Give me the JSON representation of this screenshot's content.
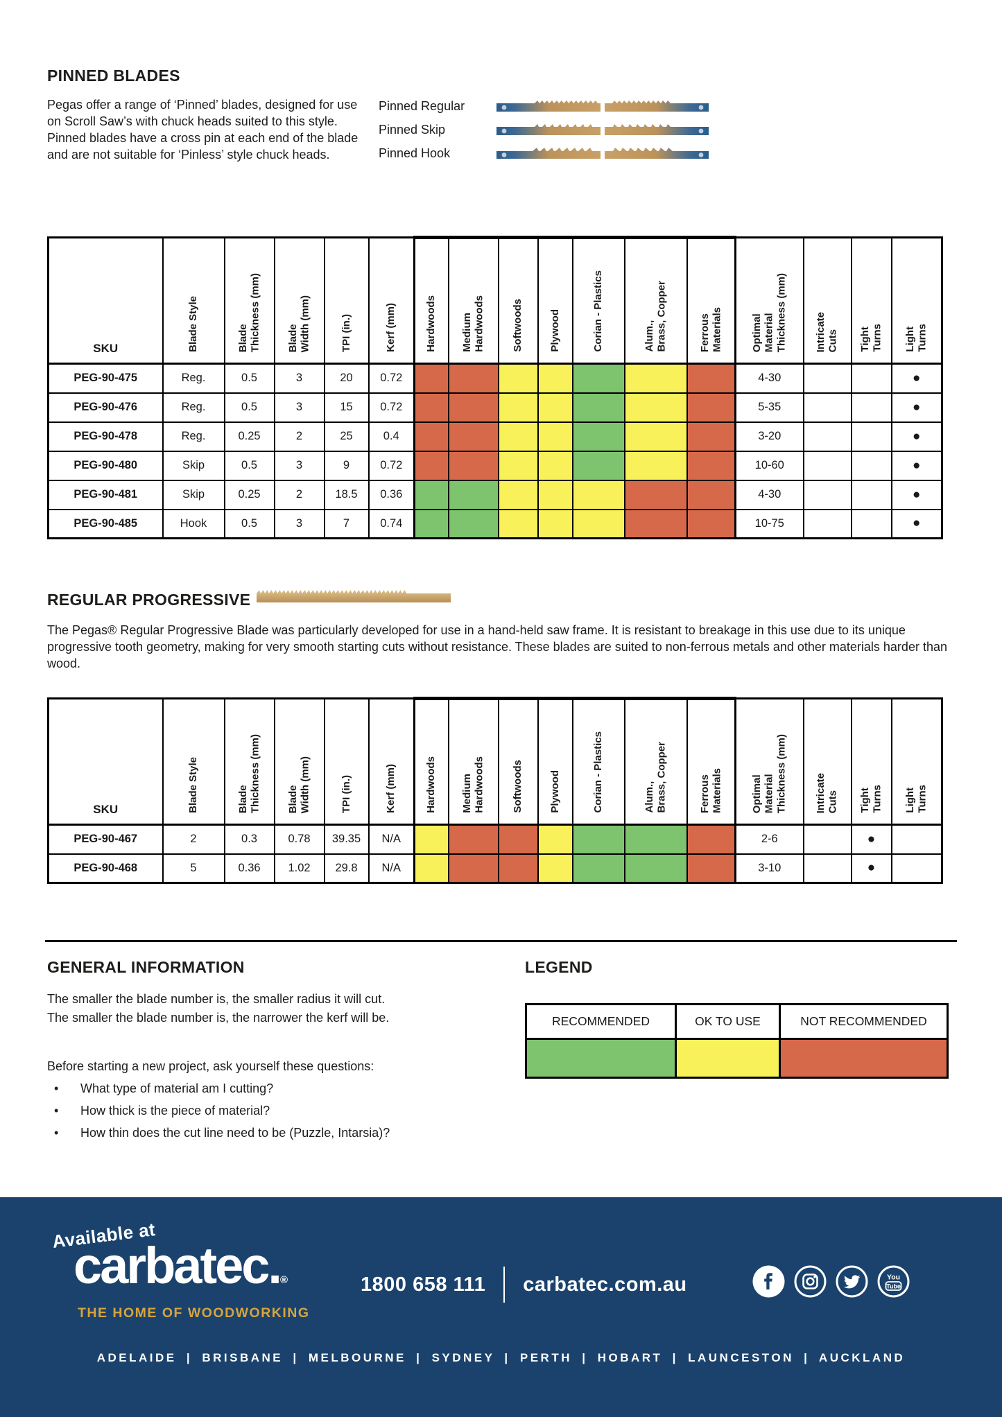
{
  "pinned_blades": {
    "heading": "PINNED BLADES",
    "description": "Pegas offer a range of ‘Pinned’ blades, designed for use on Scroll Saw’s with chuck heads suited to this style. Pinned blades have a cross pin at each end of the blade and are not suitable for ‘Pinless’ style chuck heads.",
    "blade_types": [
      {
        "label": "Pinned Regular"
      },
      {
        "label": "Pinned Skip"
      },
      {
        "label": "Pinned Hook"
      }
    ]
  },
  "table": {
    "columns": [
      {
        "key": "sku",
        "label": "SKU"
      },
      {
        "key": "style",
        "label": "Blade Style"
      },
      {
        "key": "thickness",
        "label": "Blade\nThickness (mm)"
      },
      {
        "key": "width",
        "label": "Blade\nWidth (mm)"
      },
      {
        "key": "tpi",
        "label": "TPI (in.)"
      },
      {
        "key": "kerf",
        "label": "Kerf (mm)"
      },
      {
        "key": "hardwoods",
        "label": "Hardwoods",
        "material": true
      },
      {
        "key": "medium_hardwoods",
        "label": "Medium\nHardwoods",
        "material": true
      },
      {
        "key": "softwoods",
        "label": "Softwoods",
        "material": true
      },
      {
        "key": "plywood",
        "label": "Plywood",
        "material": true
      },
      {
        "key": "corian_plastics",
        "label": "Corian  - Plastics",
        "material": true
      },
      {
        "key": "alum_brass_copper",
        "label": "Alum.,\nBrass, Copper",
        "material": true
      },
      {
        "key": "ferrous",
        "label": "Ferrous\nMaterials",
        "material": true
      },
      {
        "key": "optimal",
        "label": "Optimal\nMaterial\nThickness (mm)"
      },
      {
        "key": "intricate",
        "label": "Intricate\nCuts"
      },
      {
        "key": "tight",
        "label": "Tight\nTurns"
      },
      {
        "key": "light",
        "label": "Light\nTurns"
      }
    ]
  },
  "pinned_table": {
    "rows": [
      {
        "sku": "PEG-90-475",
        "style": "Reg.",
        "thickness": "0.5",
        "width": "3",
        "tpi": "20",
        "kerf": "0.72",
        "materials": [
          "not_recommended",
          "not_recommended",
          "ok",
          "ok",
          "recommended",
          "ok",
          "not_recommended"
        ],
        "optimal": "4-30",
        "intricate": "",
        "tight": "",
        "light": "●"
      },
      {
        "sku": "PEG-90-476",
        "style": "Reg.",
        "thickness": "0.5",
        "width": "3",
        "tpi": "15",
        "kerf": "0.72",
        "materials": [
          "not_recommended",
          "not_recommended",
          "ok",
          "ok",
          "recommended",
          "ok",
          "not_recommended"
        ],
        "optimal": "5-35",
        "intricate": "",
        "tight": "",
        "light": "●"
      },
      {
        "sku": "PEG-90-478",
        "style": "Reg.",
        "thickness": "0.25",
        "width": "2",
        "tpi": "25",
        "kerf": "0.4",
        "materials": [
          "not_recommended",
          "not_recommended",
          "ok",
          "ok",
          "recommended",
          "ok",
          "not_recommended"
        ],
        "optimal": "3-20",
        "intricate": "",
        "tight": "",
        "light": "●"
      },
      {
        "sku": "PEG-90-480",
        "style": "Skip",
        "thickness": "0.5",
        "width": "3",
        "tpi": "9",
        "kerf": "0.72",
        "materials": [
          "not_recommended",
          "not_recommended",
          "ok",
          "ok",
          "recommended",
          "ok",
          "not_recommended"
        ],
        "optimal": "10-60",
        "intricate": "",
        "tight": "",
        "light": "●"
      },
      {
        "sku": "PEG-90-481",
        "style": "Skip",
        "thickness": "0.25",
        "width": "2",
        "tpi": "18.5",
        "kerf": "0.36",
        "materials": [
          "recommended",
          "recommended",
          "ok",
          "ok",
          "ok",
          "not_recommended",
          "not_recommended"
        ],
        "optimal": "4-30",
        "intricate": "",
        "tight": "",
        "light": "●"
      },
      {
        "sku": "PEG-90-485",
        "style": "Hook",
        "thickness": "0.5",
        "width": "3",
        "tpi": "7",
        "kerf": "0.74",
        "materials": [
          "recommended",
          "recommended",
          "ok",
          "ok",
          "ok",
          "not_recommended",
          "not_recommended"
        ],
        "optimal": "10-75",
        "intricate": "",
        "tight": "",
        "light": "●"
      }
    ]
  },
  "regular_progressive": {
    "heading": "REGULAR PROGRESSIVE",
    "description": "The Pegas® Regular Progressive Blade was particularly developed for use in a hand-held saw frame. It is resistant to breakage in this use due to its unique progressive tooth geometry, making for very smooth starting cuts without resistance. These blades are suited to non-ferrous metals and other materials harder than wood."
  },
  "progressive_table": {
    "rows": [
      {
        "sku": "PEG-90-467",
        "style": "2",
        "thickness": "0.3",
        "width": "0.78",
        "tpi": "39.35",
        "kerf": "N/A",
        "materials": [
          "ok",
          "not_recommended",
          "not_recommended",
          "ok",
          "recommended",
          "recommended",
          "not_recommended"
        ],
        "optimal": "2-6",
        "intricate": "",
        "tight": "●",
        "light": ""
      },
      {
        "sku": "PEG-90-468",
        "style": "5",
        "thickness": "0.36",
        "width": "1.02",
        "tpi": "29.8",
        "kerf": "N/A",
        "materials": [
          "ok",
          "not_recommended",
          "not_recommended",
          "ok",
          "recommended",
          "recommended",
          "not_recommended"
        ],
        "optimal": "3-10",
        "intricate": "",
        "tight": "●",
        "light": ""
      }
    ]
  },
  "general_information": {
    "heading": "GENERAL INFORMATION",
    "lines": [
      "The smaller the blade number is, the smaller radius it will cut.",
      "The smaller the blade number is, the narrower the kerf will be."
    ],
    "intro": "Before starting a new project, ask yourself these questions:",
    "bullet_glyph": "•",
    "bullets": [
      "What type of material am I cutting?",
      "How thick is the piece of material?",
      "How thin does the cut line need to be (Puzzle, Intarsia)?"
    ]
  },
  "legend": {
    "heading": "LEGEND",
    "items": [
      {
        "key": "recommended",
        "label": "RECOMMENDED",
        "color": "#7EC36E"
      },
      {
        "key": "ok",
        "label": "OK TO USE",
        "color": "#F8F15A"
      },
      {
        "key": "not_recommended",
        "label": "NOT RECOMMENDED",
        "color": "#D7694B"
      }
    ]
  },
  "footer": {
    "available_at": "Available at",
    "logo": "carbatec",
    "logo_suffix": ".",
    "logo_reg": "®",
    "tagline": "THE HOME OF WOODWORKING",
    "phone": "1800 658 111",
    "website": "carbatec.com.au",
    "social": [
      "facebook",
      "instagram",
      "twitter",
      "youtube"
    ],
    "cities": "ADELAIDE  |  BRISBANE  |  MELBOURNE  |  SYDNEY  |  PERTH  |  HOBART  |  LAUNCESTON  |  AUCKLAND",
    "background": "#1A426C",
    "gold": "#D7A43E"
  }
}
